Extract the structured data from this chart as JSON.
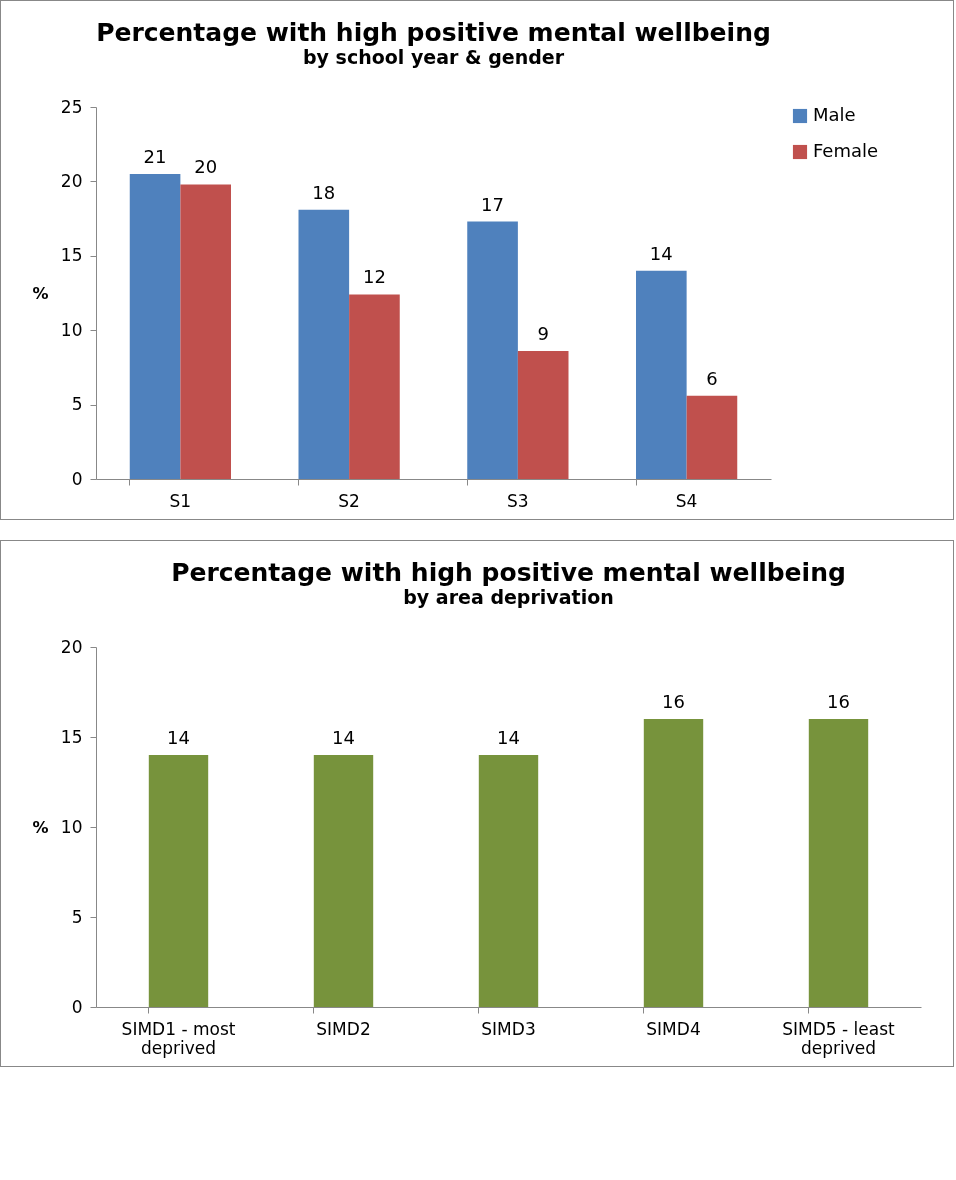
{
  "chart_data": [
    {
      "type": "bar",
      "title": "Percentage with high positive mental wellbeing",
      "subtitle": "by school year & gender",
      "ylabel": "%",
      "categories": [
        "S1",
        "S2",
        "S3",
        "S4"
      ],
      "series": [
        {
          "name": "Male",
          "color": "#4f81bd",
          "values": [
            20.5,
            18.1,
            17.3,
            14.0
          ],
          "value_labels": [
            "21",
            "18",
            "17",
            "14"
          ]
        },
        {
          "name": "Female",
          "color": "#c0504d",
          "values": [
            19.8,
            12.4,
            8.6,
            5.6
          ],
          "value_labels": [
            "20",
            "12",
            "9",
            "6"
          ]
        }
      ],
      "ylim": [
        0,
        25
      ],
      "yticks": [
        0,
        5,
        10,
        15,
        20,
        25
      ],
      "grid": false,
      "legend": "right"
    },
    {
      "type": "bar",
      "title": "Percentage with high positive mental wellbeing",
      "subtitle": "by area deprivation",
      "ylabel": "%",
      "categories": [
        "SIMD1 - most deprived",
        "SIMD2",
        "SIMD3",
        "SIMD4",
        "SIMD5 - least deprived"
      ],
      "values": [
        14,
        14,
        14,
        16,
        16
      ],
      "color": "#77933c",
      "data_labels": true,
      "ylim": [
        0,
        20
      ],
      "yticks": [
        0,
        5,
        10,
        15,
        20
      ],
      "grid": false
    }
  ]
}
